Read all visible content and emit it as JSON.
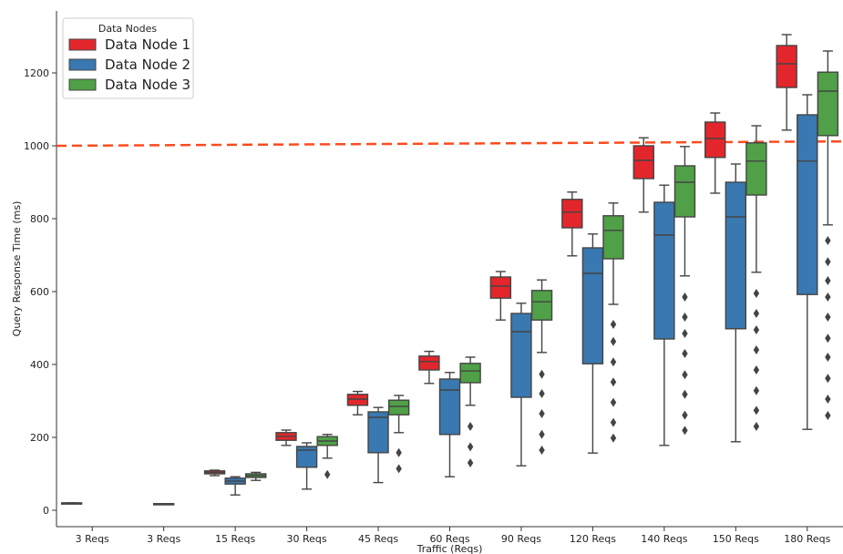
{
  "chart_data": {
    "type": "boxplot",
    "xlabel": "Traffic (Reqs)",
    "ylabel": "Query Response Time (ms)",
    "ylim": [
      -45,
      1370
    ],
    "yticks": [
      0,
      200,
      400,
      600,
      800,
      1000,
      1200
    ],
    "categories": [
      "3 Reqs",
      "3 Reqs",
      "15 Reqs",
      "30 Reqs",
      "45 Reqs",
      "60 Reqs",
      "90 Reqs",
      "120 Reqs",
      "140 Reqs",
      "150 Reqs",
      "180 Reqs"
    ],
    "legend": {
      "title": "Data Nodes",
      "position": "top-left"
    },
    "threshold": {
      "style": "dashed",
      "color": "#ff4b1f",
      "from_value": 1000,
      "to_value": 1012
    },
    "series": [
      {
        "name": "Data Node 1",
        "color": "#e3262b",
        "boxes": [
          {
            "category_index": 0,
            "low": 20,
            "q1": 20,
            "median": 20,
            "q3": 20,
            "high": 20,
            "outliers": []
          },
          {
            "category_index": 2,
            "low": 95,
            "q1": 100,
            "median": 104,
            "q3": 108,
            "high": 110,
            "outliers": []
          },
          {
            "category_index": 3,
            "low": 178,
            "q1": 192,
            "median": 203,
            "q3": 213,
            "high": 220,
            "outliers": []
          },
          {
            "category_index": 4,
            "low": 262,
            "q1": 288,
            "median": 305,
            "q3": 318,
            "high": 326,
            "outliers": []
          },
          {
            "category_index": 5,
            "low": 348,
            "q1": 385,
            "median": 408,
            "q3": 423,
            "high": 436,
            "outliers": []
          },
          {
            "category_index": 6,
            "low": 522,
            "q1": 582,
            "median": 615,
            "q3": 640,
            "high": 655,
            "outliers": []
          },
          {
            "category_index": 7,
            "low": 698,
            "q1": 775,
            "median": 818,
            "q3": 853,
            "high": 873,
            "outliers": []
          },
          {
            "category_index": 8,
            "low": 818,
            "q1": 910,
            "median": 960,
            "q3": 1000,
            "high": 1022,
            "outliers": []
          },
          {
            "category_index": 9,
            "low": 870,
            "q1": 968,
            "median": 1020,
            "q3": 1065,
            "high": 1090,
            "outliers": []
          },
          {
            "category_index": 10,
            "low": 1043,
            "q1": 1160,
            "median": 1225,
            "q3": 1275,
            "high": 1305,
            "outliers": []
          }
        ]
      },
      {
        "name": "Data Node 2",
        "color": "#3978b0",
        "boxes": [
          {
            "category_index": 1,
            "low": 18,
            "q1": 18,
            "median": 18,
            "q3": 18,
            "high": 18,
            "outliers": []
          },
          {
            "category_index": 2,
            "low": 42,
            "q1": 72,
            "median": 80,
            "q3": 88,
            "high": 92,
            "outliers": []
          },
          {
            "category_index": 3,
            "low": 58,
            "q1": 118,
            "median": 165,
            "q3": 175,
            "high": 185,
            "outliers": []
          },
          {
            "category_index": 4,
            "low": 76,
            "q1": 158,
            "median": 255,
            "q3": 270,
            "high": 282,
            "outliers": []
          },
          {
            "category_index": 5,
            "low": 92,
            "q1": 208,
            "median": 330,
            "q3": 360,
            "high": 378,
            "outliers": []
          },
          {
            "category_index": 6,
            "low": 122,
            "q1": 310,
            "median": 490,
            "q3": 540,
            "high": 568,
            "outliers": []
          },
          {
            "category_index": 7,
            "low": 157,
            "q1": 402,
            "median": 650,
            "q3": 720,
            "high": 758,
            "outliers": []
          },
          {
            "category_index": 8,
            "low": 178,
            "q1": 470,
            "median": 755,
            "q3": 845,
            "high": 892,
            "outliers": []
          },
          {
            "category_index": 9,
            "low": 188,
            "q1": 498,
            "median": 805,
            "q3": 900,
            "high": 950,
            "outliers": []
          },
          {
            "category_index": 10,
            "low": 222,
            "q1": 592,
            "median": 958,
            "q3": 1085,
            "high": 1140,
            "outliers": []
          }
        ]
      },
      {
        "name": "Data Node 3",
        "color": "#4fa046",
        "boxes": [
          {
            "category_index": 2,
            "low": 82,
            "q1": 90,
            "median": 95,
            "q3": 100,
            "high": 104,
            "outliers": []
          },
          {
            "category_index": 3,
            "low": 143,
            "q1": 178,
            "median": 190,
            "q3": 202,
            "high": 208,
            "outliers": [
              98
            ]
          },
          {
            "category_index": 4,
            "low": 213,
            "q1": 262,
            "median": 285,
            "q3": 302,
            "high": 315,
            "outliers": [
              158,
              114
            ]
          },
          {
            "category_index": 5,
            "low": 288,
            "q1": 350,
            "median": 382,
            "q3": 403,
            "high": 420,
            "outliers": [
              230,
              174,
              130
            ]
          },
          {
            "category_index": 6,
            "low": 433,
            "q1": 522,
            "median": 572,
            "q3": 603,
            "high": 632,
            "outliers": [
              373,
              320,
              265,
              208,
              165
            ]
          },
          {
            "category_index": 7,
            "low": 565,
            "q1": 690,
            "median": 768,
            "q3": 808,
            "high": 843,
            "outliers": [
              510,
              463,
              407,
              352,
              296,
              241,
              198
            ]
          },
          {
            "category_index": 8,
            "low": 643,
            "q1": 805,
            "median": 900,
            "q3": 945,
            "high": 998,
            "outliers": [
              585,
              530,
              485,
              430,
              372,
              318,
              261,
              219
            ]
          },
          {
            "category_index": 9,
            "low": 653,
            "q1": 865,
            "median": 958,
            "q3": 1008,
            "high": 1055,
            "outliers": [
              595,
              540,
              495,
              440,
              385,
              328,
              274,
              230
            ]
          },
          {
            "category_index": 10,
            "low": 783,
            "q1": 1028,
            "median": 1150,
            "q3": 1202,
            "high": 1260,
            "outliers": [
              740,
              682,
              630,
              585,
              530,
              472,
              420,
              362,
              305,
              260
            ]
          }
        ]
      }
    ]
  }
}
